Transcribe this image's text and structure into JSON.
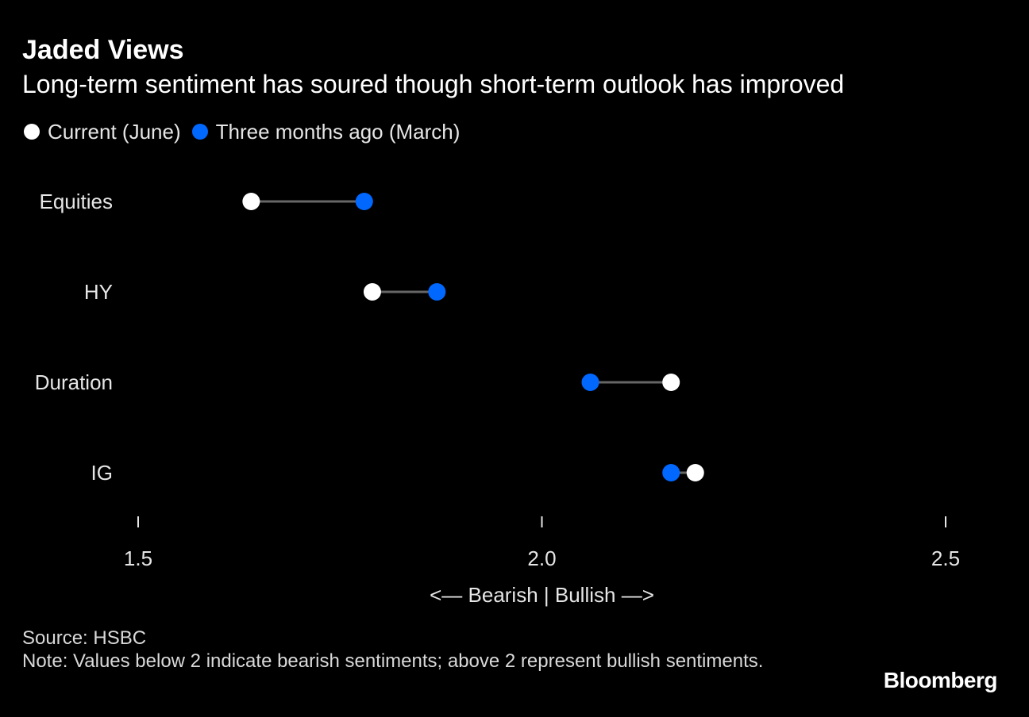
{
  "title": "Jaded Views",
  "subtitle": "Long-term sentiment has soured though short-term outlook has improved",
  "legend": {
    "current": "Current (June)",
    "previous": "Three months ago (March)"
  },
  "colors": {
    "background": "#000000",
    "current": "#ffffff",
    "previous": "#0068ff",
    "connector": "#666666",
    "text": "#e6e6e6"
  },
  "chart_data": {
    "type": "dumbbell",
    "categories": [
      "Equities",
      "HY",
      "Duration",
      "IG"
    ],
    "series": [
      {
        "name": "Current (June)",
        "values": [
          1.64,
          1.79,
          2.16,
          2.19
        ]
      },
      {
        "name": "Three months ago (March)",
        "values": [
          1.78,
          1.87,
          2.06,
          2.16
        ]
      }
    ],
    "xlim": [
      1.5,
      2.5
    ],
    "xticks": [
      "1.5",
      "2.0",
      "2.5"
    ],
    "xlabel": "<— Bearish | Bullish —>",
    "ylabel": "",
    "legend_position": "top-left"
  },
  "footer": {
    "source": "Source: HSBC",
    "note": "Note: Values below 2 indicate bearish sentiments; above 2 represent bullish sentiments."
  },
  "brand": "Bloomberg"
}
